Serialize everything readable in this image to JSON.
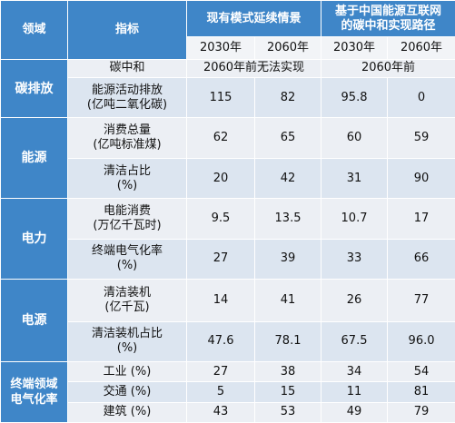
{
  "header": {
    "domain": "领域",
    "indicator": "指标",
    "scenario1": "现有模式延续情景",
    "scenario2_line1": "基于中国能源互联网",
    "scenario2_line2": "的碳中和实现路径",
    "y2030": "2030年",
    "y2060": "2060年"
  },
  "carbon": {
    "domain": "碳排放",
    "row1": {
      "indicator": "碳中和",
      "s1": "2060年前无法实现",
      "s2": "2060年前"
    },
    "row2": {
      "indicator_l1": "能源活动排放",
      "indicator_l2": "(亿吨二氧化碳)",
      "v1": "115",
      "v2": "82",
      "v3": "95.8",
      "v4": "0"
    }
  },
  "energy": {
    "domain": "能源",
    "row1": {
      "indicator_l1": "消费总量",
      "indicator_l2": "(亿吨标准煤)",
      "v1": "62",
      "v2": "65",
      "v3": "60",
      "v4": "59"
    },
    "row2": {
      "indicator_l1": "清洁占比",
      "indicator_l2": "(%)",
      "v1": "20",
      "v2": "42",
      "v3": "31",
      "v4": "90"
    }
  },
  "power": {
    "domain": "电力",
    "row1": {
      "indicator_l1": "电能消费",
      "indicator_l2": "(万亿千瓦时)",
      "v1": "9.5",
      "v2": "13.5",
      "v3": "10.7",
      "v4": "17"
    },
    "row2": {
      "indicator_l1": "终端电气化率",
      "indicator_l2": "(%)",
      "v1": "27",
      "v2": "39",
      "v3": "33",
      "v4": "66"
    }
  },
  "source": {
    "domain": "电源",
    "row1": {
      "indicator_l1": "清洁装机",
      "indicator_l2": "(亿千瓦)",
      "v1": "14",
      "v2": "41",
      "v3": "26",
      "v4": "77"
    },
    "row2": {
      "indicator_l1": "清洁装机占比",
      "indicator_l2": "(%)",
      "v1": "47.6",
      "v2": "78.1",
      "v3": "67.5",
      "v4": "96.0"
    }
  },
  "terminal": {
    "domain_l1": "终端领域",
    "domain_l2": "电气化率",
    "row1": {
      "indicator": "工业 (%)",
      "v1": "27",
      "v2": "38",
      "v3": "34",
      "v4": "54"
    },
    "row2": {
      "indicator": "交通 (%)",
      "v1": "5",
      "v2": "15",
      "v3": "11",
      "v4": "81"
    },
    "row3": {
      "indicator": "建筑 (%)",
      "v1": "43",
      "v2": "53",
      "v3": "49",
      "v4": "79"
    }
  }
}
